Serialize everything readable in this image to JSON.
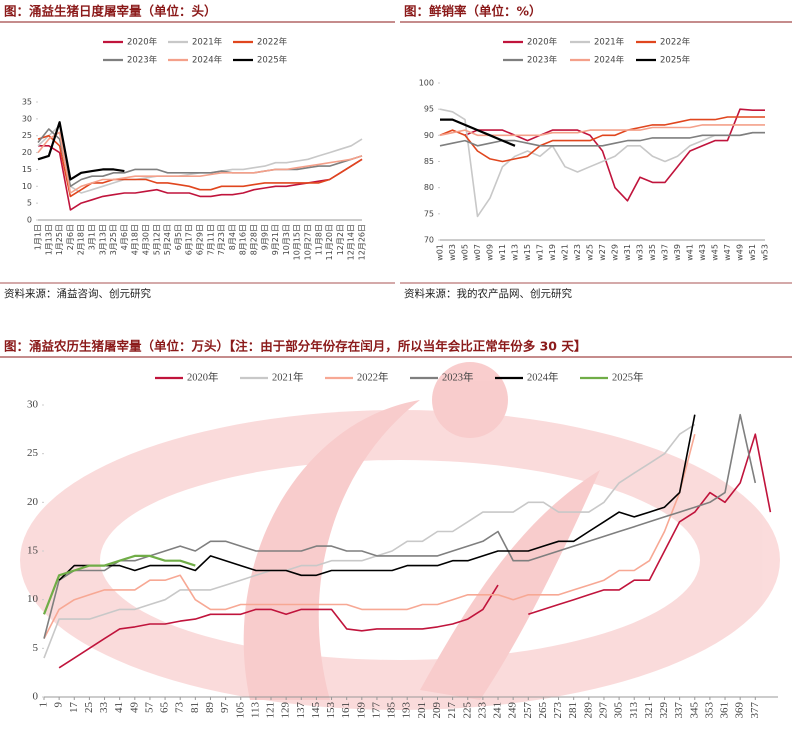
{
  "chart_data": [
    {
      "type": "line",
      "title": "图：涌益生猪日度屠宰量（单位：头）",
      "source": "资料来源：涌益咨询、创元研究",
      "categories": [
        "1月1日",
        "1月13日",
        "1月25日",
        "2月6日",
        "2月18日",
        "3月1日",
        "3月13日",
        "3月25日",
        "4月6日",
        "4月18日",
        "4月30日",
        "5月12日",
        "5月24日",
        "6月5日",
        "6月17日",
        "6月29日",
        "7月11日",
        "7月23日",
        "8月4日",
        "8月16日",
        "8月28日",
        "9月9日",
        "9月21日",
        "10月3日",
        "10月15日",
        "10月27日",
        "11月8日",
        "11月20日",
        "12月2日",
        "12月14日",
        "12月26日"
      ],
      "ylim": [
        0,
        35
      ],
      "yticks": [
        0,
        5,
        10,
        15,
        20,
        25,
        30,
        35
      ],
      "series": [
        {
          "name": "2020年",
          "color": "#c0143c",
          "values": [
            22,
            22,
            20,
            3,
            5,
            6,
            7,
            7.5,
            8,
            8,
            8.5,
            9,
            8,
            8,
            8,
            7,
            7,
            7.5,
            7.5,
            8,
            9,
            9.5,
            10,
            10,
            10.5,
            11,
            11.5,
            12,
            14,
            16,
            18
          ]
        },
        {
          "name": "2021年",
          "color": "#c8c8c8",
          "values": [
            22,
            25,
            28,
            10,
            8,
            9,
            10,
            11,
            12,
            12,
            12.5,
            13,
            13,
            13,
            13.5,
            14,
            14,
            14.5,
            15,
            15,
            15.5,
            16,
            17,
            17,
            17.5,
            18,
            19,
            20,
            21,
            22,
            24
          ]
        },
        {
          "name": "2022年",
          "color": "#e0461e",
          "values": [
            24,
            25,
            22,
            7,
            9,
            11,
            11,
            12,
            12,
            12,
            12,
            11,
            11,
            10.5,
            10,
            9,
            9,
            10,
            10,
            10,
            10.5,
            11,
            11,
            11,
            11,
            11,
            11,
            12,
            14,
            16,
            18
          ]
        },
        {
          "name": "2023年",
          "color": "#7f7f7f",
          "values": [
            23,
            27,
            24,
            10,
            12,
            13,
            13,
            14,
            14,
            15,
            15,
            15,
            14,
            14,
            14,
            14,
            14,
            14.5,
            14,
            14,
            14,
            14.5,
            15,
            15,
            15,
            15.5,
            16,
            16,
            17,
            18,
            19
          ]
        },
        {
          "name": "2024年",
          "color": "#f4a08a",
          "values": [
            20,
            24,
            26,
            8,
            10,
            11,
            12,
            12,
            12.5,
            13,
            13,
            13,
            13,
            13,
            13,
            13,
            13.5,
            14,
            14,
            14,
            14,
            14.5,
            15,
            15,
            15.5,
            16,
            16.5,
            17,
            17.5,
            18,
            19
          ]
        },
        {
          "name": "2025年",
          "color": "#000000",
          "values": [
            18,
            19,
            29,
            12,
            14,
            14.5,
            15,
            15,
            14.5,
            null,
            null,
            null,
            null,
            null,
            null,
            null,
            null,
            null,
            null,
            null,
            null,
            null,
            null,
            null,
            null,
            null,
            null,
            null,
            null,
            null,
            null
          ]
        }
      ]
    },
    {
      "type": "line",
      "title": "图：鲜销率（单位：%）",
      "source": "资料来源：我的农产品网、创元研究",
      "categories": [
        "w01",
        "w03",
        "w05",
        "w07",
        "w09",
        "w11",
        "w13",
        "w15",
        "w17",
        "w19",
        "w21",
        "w23",
        "w25",
        "w27",
        "w29",
        "w31",
        "w33",
        "w35",
        "w37",
        "w39",
        "w41",
        "w43",
        "w45",
        "w47",
        "w49",
        "w51",
        "w53"
      ],
      "ylim": [
        70,
        100
      ],
      "yticks": [
        70,
        75,
        80,
        85,
        90,
        95,
        100
      ],
      "series": [
        {
          "name": "2020年",
          "color": "#c0143c",
          "values": [
            null,
            null,
            90,
            91,
            91,
            91,
            90,
            89,
            90,
            91,
            91,
            91,
            90,
            87,
            80,
            77.5,
            82,
            81,
            81,
            84,
            87,
            88,
            89,
            89,
            95,
            94.8,
            94.8
          ]
        },
        {
          "name": "2021年",
          "color": "#c8c8c8",
          "values": [
            95,
            94.5,
            93,
            74.5,
            78,
            84,
            86,
            87,
            86,
            88,
            84,
            83,
            84,
            85,
            86,
            88,
            88,
            86,
            85,
            86,
            88,
            89,
            90,
            90,
            90,
            90.5,
            90.5
          ]
        },
        {
          "name": "2022年",
          "color": "#e0461e",
          "values": [
            90,
            91,
            90,
            87,
            85.5,
            85,
            85.5,
            86,
            88,
            89,
            89,
            89,
            89,
            90,
            90,
            91,
            91.5,
            92,
            92,
            92.5,
            93,
            93,
            93,
            93.5,
            93.5,
            93.5,
            93.5
          ]
        },
        {
          "name": "2023年",
          "color": "#7f7f7f",
          "values": [
            88,
            88.5,
            89,
            88,
            88.5,
            89,
            89,
            88.5,
            88,
            88,
            88,
            88,
            88,
            88,
            88.5,
            89,
            89,
            89.5,
            89.5,
            89.5,
            89.5,
            90,
            90,
            90,
            90,
            90.5,
            90.5
          ]
        },
        {
          "name": "2024年",
          "color": "#f4a08a",
          "values": [
            90,
            90.5,
            91,
            90,
            90,
            90,
            90,
            90,
            90,
            90.5,
            90.5,
            90.5,
            91,
            91,
            91,
            91,
            91,
            91.5,
            91.5,
            91.5,
            91.5,
            92,
            92,
            92,
            92,
            92,
            92
          ]
        },
        {
          "name": "2025年",
          "color": "#000000",
          "values": [
            93,
            93,
            92,
            91,
            90,
            89,
            88,
            null,
            null,
            null,
            null,
            null,
            null,
            null,
            null,
            null,
            null,
            null,
            null,
            null,
            null,
            null,
            null,
            null,
            null,
            null,
            null
          ]
        }
      ]
    },
    {
      "type": "line",
      "title": "图：涌益农历生猪屠宰量（单位：万头）【注：由于部分年份存在闰月，所以当年会比正常年份多 30 天】",
      "x": [
        1,
        9,
        17,
        25,
        33,
        41,
        49,
        57,
        65,
        73,
        81,
        89,
        97,
        105,
        113,
        121,
        129,
        137,
        145,
        153,
        161,
        169,
        177,
        185,
        193,
        201,
        209,
        217,
        225,
        233,
        241,
        249,
        257,
        265,
        273,
        281,
        289,
        297,
        305,
        313,
        321,
        329,
        337,
        345,
        353,
        361,
        369,
        377,
        385
      ],
      "xlim": [
        1,
        389
      ],
      "xticks": [
        1,
        9,
        17,
        25,
        33,
        41,
        49,
        57,
        65,
        73,
        81,
        89,
        97,
        105,
        113,
        121,
        129,
        137,
        145,
        153,
        161,
        169,
        177,
        185,
        193,
        201,
        209,
        217,
        225,
        233,
        241,
        249,
        257,
        265,
        273,
        281,
        289,
        297,
        305,
        313,
        321,
        329,
        337,
        345,
        353,
        361,
        369,
        377
      ],
      "ylim": [
        0,
        30
      ],
      "yticks": [
        0,
        5,
        10,
        15,
        20,
        25,
        30
      ],
      "series": [
        {
          "name": "2020年",
          "color": "#c0143c",
          "values": [
            null,
            3,
            4,
            5,
            6,
            7,
            7.2,
            7.5,
            7.5,
            7.8,
            8,
            8.5,
            8.5,
            8.5,
            9,
            9,
            8.5,
            9,
            9,
            9,
            7,
            6.8,
            7,
            7,
            7,
            7,
            7.2,
            7.5,
            8,
            9,
            11.5,
            null,
            8.5,
            9,
            9.5,
            10,
            10.5,
            11,
            11,
            12,
            12,
            15,
            18,
            19,
            21,
            20,
            22,
            27,
            19
          ]
        },
        {
          "name": "2021年",
          "color": "#c8c8c8",
          "values": [
            4,
            8,
            8,
            8,
            8.5,
            9,
            9,
            9.5,
            10,
            11,
            11,
            11,
            11.5,
            12,
            12.5,
            13,
            13,
            13.5,
            13.5,
            14,
            14,
            14,
            14.5,
            15,
            16,
            16,
            17,
            17,
            18,
            19,
            19,
            19,
            20,
            20,
            19,
            19,
            19,
            20,
            22,
            23,
            24,
            25,
            27,
            28,
            null,
            null,
            null,
            null,
            null
          ]
        },
        {
          "name": "2022年",
          "color": "#f7a894",
          "values": [
            6,
            9,
            10,
            10.5,
            11,
            11,
            11,
            12,
            12,
            12.5,
            10,
            9,
            9,
            9.5,
            9.5,
            9.5,
            9.5,
            9.5,
            9.5,
            9.5,
            9.5,
            9,
            9,
            9,
            9,
            9.5,
            9.5,
            10,
            10.5,
            10.5,
            10.5,
            10,
            10.5,
            10.5,
            10.5,
            11,
            11.5,
            12,
            13,
            13,
            14,
            17,
            21,
            27,
            null,
            null,
            null,
            null,
            null
          ]
        },
        {
          "name": "2023年",
          "color": "#7f7f7f",
          "values": [
            6,
            12,
            13,
            13,
            13,
            14,
            14,
            14.5,
            15,
            15.5,
            15,
            16,
            16,
            15.5,
            15,
            15,
            15,
            15,
            15.5,
            15.5,
            15,
            15,
            14.5,
            14.5,
            14.5,
            14.5,
            14.5,
            15,
            15.5,
            16,
            17,
            14,
            14,
            14.5,
            15,
            15.5,
            16,
            16.5,
            17,
            17.5,
            18,
            18.5,
            19,
            19.5,
            20,
            21,
            29,
            22,
            null
          ]
        },
        {
          "name": "2024年",
          "color": "#000000",
          "values": [
            null,
            12,
            13.5,
            13.5,
            13.5,
            13.5,
            13,
            13.5,
            13.5,
            13.5,
            13,
            14.5,
            14,
            13.5,
            13,
            13,
            13,
            12.5,
            12.5,
            13,
            13,
            13,
            13,
            13,
            13.5,
            13.5,
            13.5,
            14,
            14,
            14.5,
            15,
            15,
            15,
            15.5,
            16,
            16,
            17,
            18,
            19,
            18.5,
            19,
            19.5,
            21,
            29,
            null,
            null,
            null,
            null,
            null
          ]
        },
        {
          "name": "2025年",
          "color": "#70ad47",
          "values": [
            8.5,
            12.5,
            13,
            13.5,
            13.5,
            14,
            14.5,
            14.5,
            14,
            14,
            13.5,
            null,
            null,
            null,
            null,
            null,
            null,
            null,
            null,
            null,
            null,
            null,
            null,
            null,
            null,
            null,
            null,
            null,
            null,
            null,
            null,
            null,
            null,
            null,
            null,
            null,
            null,
            null,
            null,
            null,
            null,
            null,
            null,
            null,
            null,
            null,
            null,
            null,
            null
          ]
        }
      ]
    }
  ]
}
